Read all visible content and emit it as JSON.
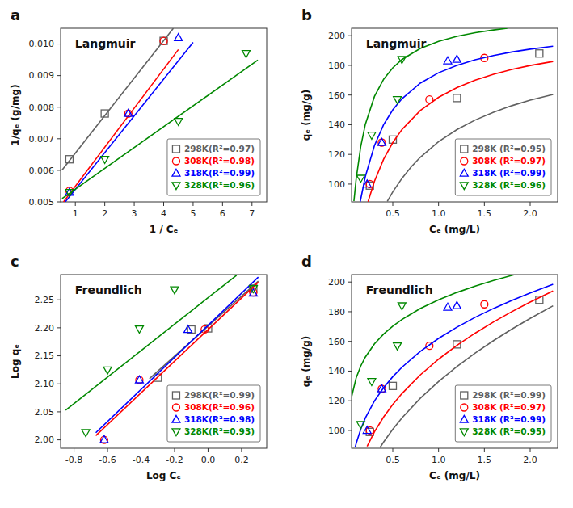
{
  "chart_data": [
    {
      "type": "scatter",
      "title": "Langmuir",
      "annotations": [
        "a"
      ],
      "x_label": "1 / Cₑ",
      "y_label": "1/qₑ (g/mg)",
      "xlim": [
        0.5,
        7.5
      ],
      "ylim": [
        0.005,
        0.0105
      ],
      "xticks": [
        1,
        2,
        3,
        4,
        5,
        6,
        7
      ],
      "yticks": [
        0.005,
        0.006,
        0.007,
        0.008,
        0.009,
        {
          "value": 0.01,
          "label": "0.010"
        }
      ],
      "grid": false,
      "legend": "lower right",
      "series": [
        {
          "name": "298K(R²=0.97)",
          "color": "#606060",
          "marker": "square",
          "x": [
            0.8,
            2.0,
            4.0
          ],
          "values": [
            0.00635,
            0.0078,
            0.0101
          ]
        },
        {
          "type": "line",
          "color": "#606060",
          "x": [
            0.55,
            4.33
          ],
          "values": [
            0.0060084,
            0.01049904
          ]
        },
        {
          "name": "308K(R²=0.98)",
          "color": "#ff0000",
          "marker": "circle",
          "x": [
            0.8,
            2.8,
            4.0
          ],
          "values": [
            0.00535,
            0.0078,
            0.0101
          ]
        },
        {
          "type": "line",
          "color": "#ff0000",
          "x": [
            0.6,
            4.5
          ],
          "values": [
            0.0050012,
            0.0098255
          ]
        },
        {
          "name": "318K(R²=0.99)",
          "color": "#0000ff",
          "marker": "triangle-up",
          "x": [
            0.8,
            2.8,
            4.5
          ],
          "values": [
            0.0053,
            0.0078,
            0.0102
          ]
        },
        {
          "type": "line",
          "color": "#0000ff",
          "x": [
            0.66,
            5.0
          ],
          "values": [
            0.00500258,
            0.01005
          ]
        },
        {
          "name": "328K(R²=0.96)",
          "color": "#008800",
          "marker": "triangle-down",
          "x": [
            0.8,
            2.0,
            4.5,
            6.8
          ],
          "values": [
            0.0053,
            0.00635,
            0.00755,
            0.0097
          ]
        },
        {
          "type": "line",
          "color": "#008800",
          "x": [
            0.55,
            7.2
          ],
          "values": [
            0.005103,
            0.009492
          ]
        }
      ]
    },
    {
      "type": "scatter",
      "title": "Langmuir",
      "annotations": [
        "b"
      ],
      "x_label": "Cₑ (mg/L)",
      "y_label": "qₑ (mg/g)",
      "xlim": [
        0.05,
        2.3
      ],
      "ylim": [
        88,
        205
      ],
      "xticks": [
        0.5,
        {
          "value": 1,
          "label": "1.0"
        },
        1.5,
        {
          "value": 2,
          "label": "2.0"
        }
      ],
      "yticks": [
        100,
        120,
        140,
        160,
        180,
        200
      ],
      "grid": false,
      "legend": "lower right",
      "series": [
        {
          "name": "298K (R²=0.95)",
          "color": "#606060",
          "marker": "square",
          "x": [
            0.25,
            0.5,
            1.2,
            2.1
          ],
          "values": [
            99,
            130,
            158,
            188
          ]
        },
        {
          "type": "line",
          "color": "#606060",
          "x": [
            0.44,
            0.5,
            0.6,
            0.7,
            0.8,
            1.0,
            1.2,
            1.4,
            1.6,
            1.8,
            2.0,
            2.25
          ],
          "values": [
            88.393,
            94.737,
            103.846,
            111.504,
            118.033,
            128.571,
            136.709,
            143.182,
            148.454,
            152.83,
            156.522,
            160.396
          ]
        },
        {
          "name": "308K (R²=0.97)",
          "color": "#ff0000",
          "marker": "circle",
          "x": [
            0.25,
            0.38,
            0.9,
            1.5
          ],
          "values": [
            100,
            128,
            157,
            185
          ]
        },
        {
          "type": "line",
          "color": "#ff0000",
          "x": [
            0.23,
            0.3,
            0.4,
            0.5,
            0.6,
            0.8,
            1.0,
            1.2,
            1.4,
            1.6,
            1.8,
            2.0,
            2.25
          ],
          "values": [
            88.184,
            101.878,
            116.772,
            128,
            136.767,
            149.573,
            158.476,
            165.025,
            170.044,
            174.013,
            177.231,
            179.892,
            182.634
          ]
        },
        {
          "name": "318K (R²=0.99)",
          "color": "#0000ff",
          "marker": "triangle-up",
          "x": [
            0.22,
            0.38,
            1.1,
            1.2
          ],
          "values": [
            100,
            128,
            183,
            184
          ]
        },
        {
          "type": "line",
          "color": "#0000ff",
          "x": [
            0.145,
            0.2,
            0.3,
            0.4,
            0.5,
            0.6,
            0.8,
            1.0,
            1.2,
            1.4,
            1.6,
            1.8,
            2.0,
            2.25
          ],
          "values": [
            88.261,
            105,
            126,
            140,
            150,
            157.5,
            168,
            175,
            180,
            183.75,
            186.667,
            189,
            190.909,
            192.857
          ]
        },
        {
          "name": "328K (R²=0.96)",
          "color": "#008800",
          "marker": "triangle-down",
          "x": [
            0.15,
            0.27,
            0.55,
            0.6
          ],
          "values": [
            104,
            133,
            157,
            184
          ]
        },
        {
          "type": "line",
          "color": "#008800",
          "x": [
            0.076,
            0.1,
            0.15,
            0.2,
            0.3,
            0.4,
            0.5,
            0.6,
            0.8,
            1.0,
            1.2,
            1.4,
            1.6,
            1.75
          ],
          "values": [
            88.546,
            103.263,
            125.234,
            140.143,
            159.081,
            170.609,
            178.364,
            183.938,
            191.415,
            196.2,
            199.525,
            201.971,
            203.844,
            204.985
          ]
        }
      ]
    },
    {
      "type": "scatter",
      "title": "Freundlich",
      "annotations": [
        "c"
      ],
      "x_label": "Log Cₑ",
      "y_label": "Log qₑ",
      "xlim": [
        -0.88,
        0.35
      ],
      "ylim": [
        1.985,
        2.295
      ],
      "xticks": [
        -0.8,
        -0.6,
        -0.4,
        -0.2,
        {
          "value": 0,
          "label": "0.0"
        },
        0.2
      ],
      "yticks": [
        {
          "value": 2,
          "label": "2.00"
        },
        2.05,
        {
          "value": 2.1,
          "label": "2.10"
        },
        2.15,
        {
          "value": 2.2,
          "label": "2.20"
        },
        2.25
      ],
      "grid": false,
      "legend": "lower right",
      "series": [
        {
          "name": "298K(R²=0.99)",
          "color": "#606060",
          "marker": "square",
          "x": [
            -0.3,
            -0.1,
            0.0,
            0.27
          ],
          "values": [
            2.111,
            2.197,
            2.199,
            2.27
          ]
        },
        {
          "type": "line",
          "color": "#606060",
          "x": [
            -0.35,
            0.3
          ],
          "values": [
            2.1093,
            2.2833
          ]
        },
        {
          "name": "308K(R²=0.96)",
          "color": "#ff0000",
          "marker": "circle",
          "x": [
            -0.62,
            -0.41,
            -0.02,
            0.27
          ],
          "values": [
            2.0,
            2.107,
            2.197,
            2.263
          ]
        },
        {
          "type": "line",
          "color": "#ff0000",
          "x": [
            -0.67,
            0.3
          ],
          "values": [
            2.0076,
            2.2815
          ]
        },
        {
          "name": "318K(R²=0.98)",
          "color": "#0000ff",
          "marker": "triangle-up",
          "x": [
            -0.62,
            -0.41,
            -0.12,
            0.27
          ],
          "values": [
            2.0,
            2.107,
            2.197,
            2.262
          ]
        },
        {
          "type": "line",
          "color": "#0000ff",
          "x": [
            -0.67,
            0.3
          ],
          "values": [
            2.0127,
            2.2904
          ]
        },
        {
          "name": "328K(R²=0.93)",
          "color": "#008800",
          "marker": "triangle-down",
          "x": [
            -0.73,
            -0.6,
            -0.41,
            -0.2,
            0.27
          ],
          "values": [
            2.013,
            2.125,
            2.198,
            2.268,
            2.27
          ]
        },
        {
          "type": "line",
          "color": "#008800",
          "x": [
            -0.85,
            0.17
          ],
          "values": [
            2.0529,
            2.2939
          ]
        }
      ]
    },
    {
      "type": "scatter",
      "title": "Freundlich",
      "annotations": [
        "d"
      ],
      "x_label": "Cₑ (mg/L)",
      "y_label": "qₑ (mg/g)",
      "xlim": [
        0.05,
        2.3
      ],
      "ylim": [
        88,
        205
      ],
      "xticks": [
        0.5,
        {
          "value": 1,
          "label": "1.0"
        },
        1.5,
        {
          "value": 2,
          "label": "2.0"
        }
      ],
      "yticks": [
        100,
        120,
        140,
        160,
        180,
        200
      ],
      "grid": false,
      "legend": "lower right",
      "series": [
        {
          "name": "298K (R²=0.99)",
          "color": "#606060",
          "marker": "square",
          "x": [
            0.25,
            0.5,
            1.2,
            2.1
          ],
          "values": [
            99,
            130,
            158,
            188
          ]
        },
        {
          "type": "line",
          "color": "#606060",
          "x": [
            0.36,
            0.4,
            0.5,
            0.6,
            0.8,
            1.0,
            1.2,
            1.4,
            1.6,
            1.8,
            2.0,
            2.25
          ],
          "values": [
            88.384,
            92.188,
            100.795,
            108.421,
            121.643,
            133,
            143.062,
            152.161,
            160.509,
            168.252,
            175.495,
            183.961
          ]
        },
        {
          "name": "308K (R²=0.97)",
          "color": "#ff0000",
          "marker": "circle",
          "x": [
            0.25,
            0.38,
            0.9,
            1.5
          ],
          "values": [
            100,
            128,
            157,
            185
          ]
        },
        {
          "type": "line",
          "color": "#ff0000",
          "x": [
            0.22,
            0.3,
            0.4,
            0.5,
            0.6,
            0.8,
            1.0,
            1.2,
            1.4,
            1.6,
            1.8,
            2.0,
            2.25
          ],
          "values": [
            89.345,
            99.076,
            109.047,
            117.468,
            124.828,
            137.391,
            148,
            157.274,
            165.566,
            173.102,
            180.033,
            186.468,
            193.935
          ]
        },
        {
          "name": "318K (R²=0.99)",
          "color": "#0000ff",
          "marker": "triangle-up",
          "x": [
            0.22,
            0.38,
            1.1,
            1.2
          ],
          "values": [
            100,
            128,
            183,
            184
          ]
        },
        {
          "type": "line",
          "color": "#0000ff",
          "x": [
            0.09,
            0.1,
            0.15,
            0.2,
            0.3,
            0.4,
            0.5,
            0.6,
            0.8,
            1.0,
            1.2,
            1.4,
            1.6,
            1.8,
            2.0,
            2.25
          ],
          "values": [
            88.731,
            91.099,
            100.818,
            108.336,
            119.893,
            128.834,
            136.225,
            142.578,
            153.21,
            162,
            169.555,
            176.217,
            182.199,
            187.643,
            192.652,
            198.409
          ]
        },
        {
          "name": "328K (R²=0.95)",
          "color": "#008800",
          "marker": "triangle-down",
          "x": [
            0.15,
            0.27,
            0.55,
            0.6
          ],
          "values": [
            104,
            133,
            157,
            184
          ]
        },
        {
          "type": "line",
          "color": "#008800",
          "x": [
            0.05,
            0.1,
            0.15,
            0.2,
            0.3,
            0.4,
            0.5,
            0.6,
            0.8,
            1.0,
            1.2,
            1.4,
            1.6,
            1.83
          ],
          "values": [
            122.545,
            135.301,
            143.369,
            149.384,
            158.293,
            164.934,
            170.276,
            174.769,
            182.102,
            188,
            192.961,
            197.257,
            201.056,
            204.951
          ]
        }
      ]
    }
  ]
}
